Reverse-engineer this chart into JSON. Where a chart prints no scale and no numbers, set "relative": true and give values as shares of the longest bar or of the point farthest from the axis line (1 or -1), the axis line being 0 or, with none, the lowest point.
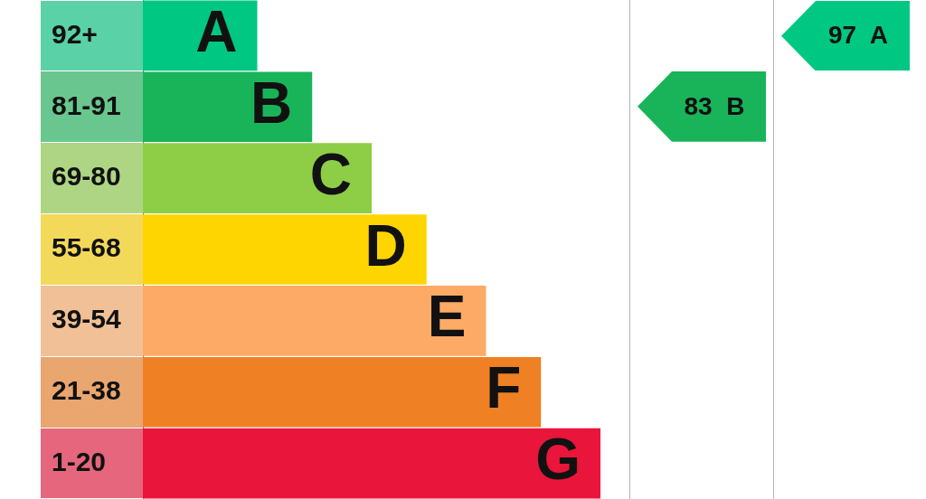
{
  "chart_data": {
    "type": "bar",
    "orientation": "horizontal",
    "relative": true,
    "categories": [
      "92+",
      "81-91",
      "69-80",
      "55-68",
      "39-54",
      "21-38",
      "1-20"
    ],
    "values": [
      0.25,
      0.37,
      0.5,
      0.62,
      0.75,
      0.87,
      1
    ],
    "colors": [
      "#00c781",
      "#19b459",
      "#8dce46",
      "#ffd500",
      "#fcaa65",
      "#ef8023",
      "#e9153b"
    ],
    "tick_labels": "y",
    "annotations": [
      {
        "text": "A",
        "x": 0.25,
        "y": "92+"
      },
      {
        "text": "B",
        "x": 0.37,
        "y": "81-91"
      },
      {
        "text": "C",
        "x": 0.5,
        "y": "69-80"
      },
      {
        "text": "D",
        "x": 0.62,
        "y": "55-68"
      },
      {
        "text": "E",
        "x": 0.75,
        "y": "39-54"
      },
      {
        "text": "F",
        "x": 0.87,
        "y": "21-38"
      },
      {
        "text": "G",
        "x": 1,
        "y": "1-20"
      },
      "83 B",
      "97 A"
    ]
  }
}
